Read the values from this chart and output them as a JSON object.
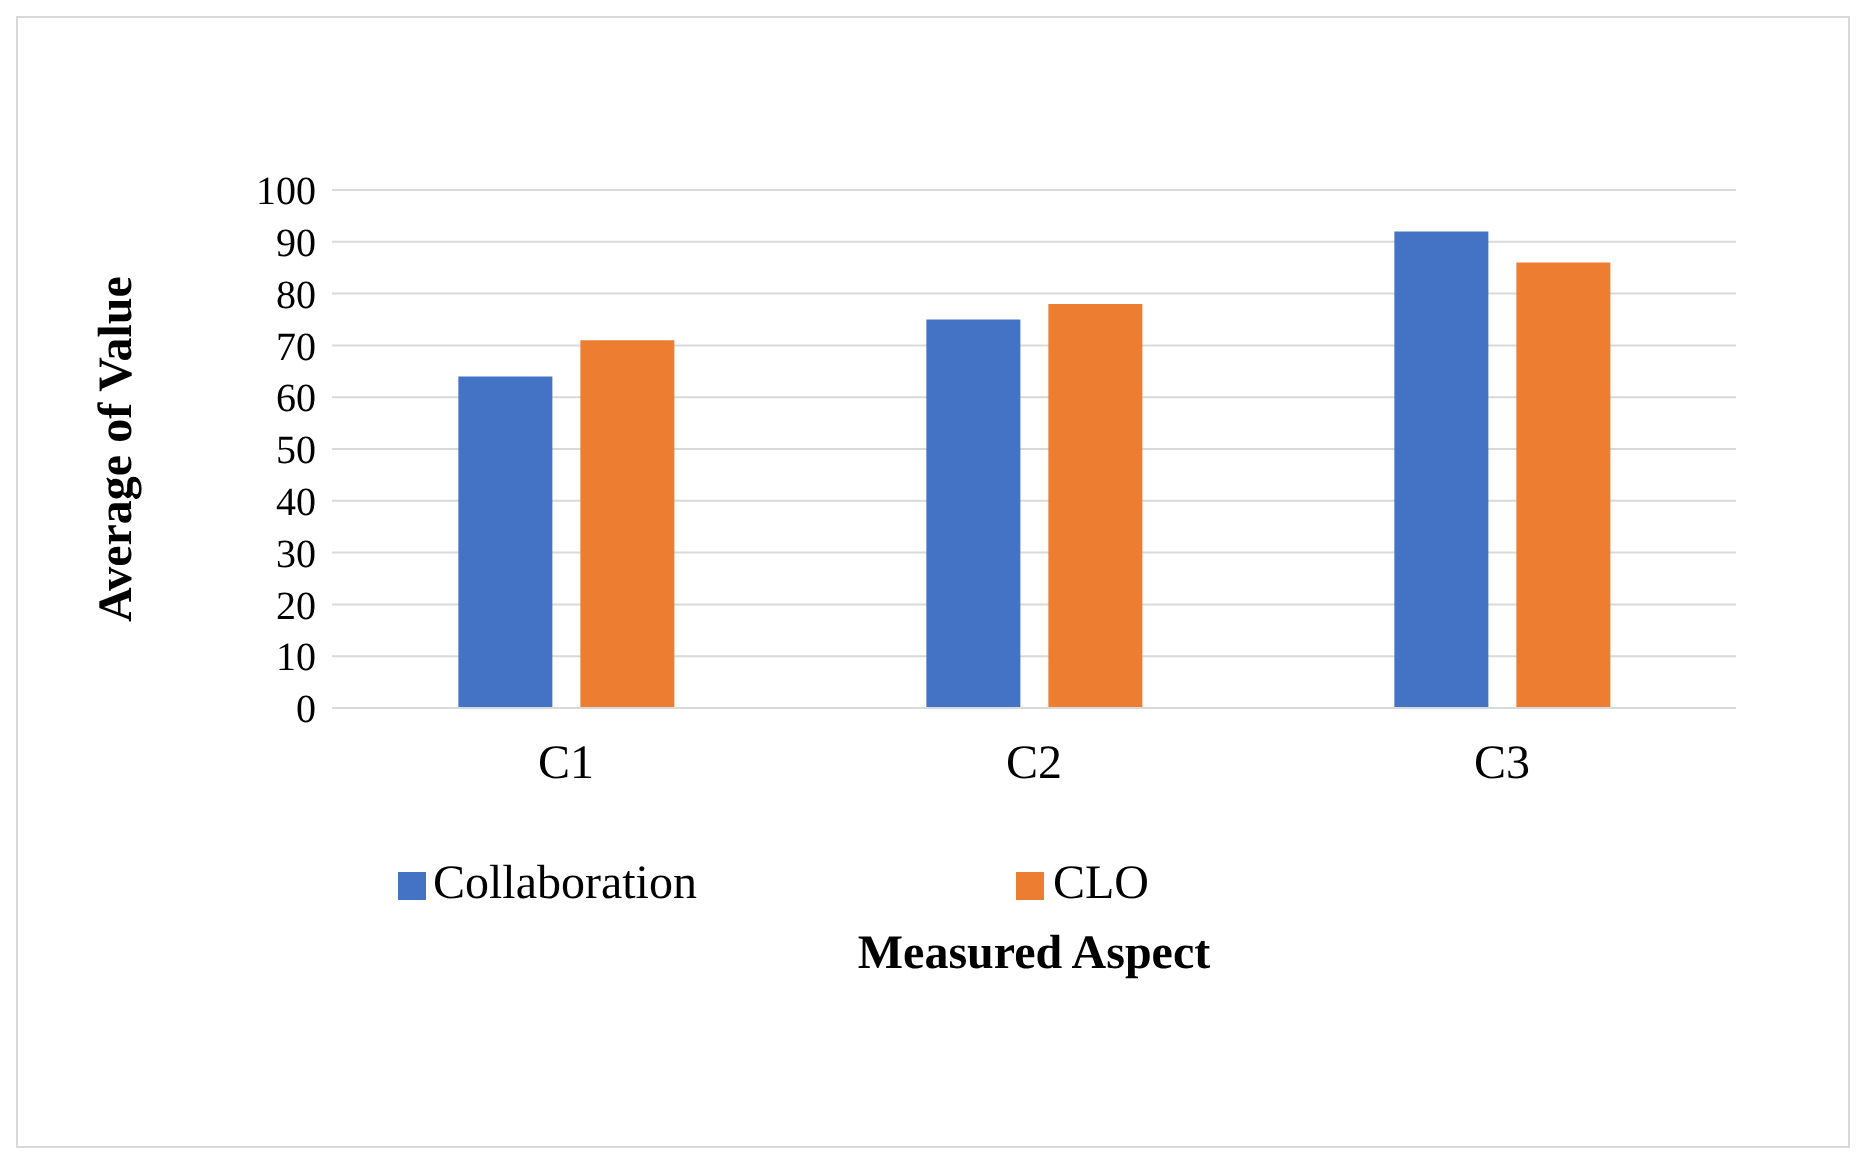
{
  "chart_data": {
    "type": "bar",
    "xlabel": "Measured Aspect",
    "ylabel": "Average of Value",
    "categories": [
      "C1",
      "C2",
      "C3"
    ],
    "series": [
      {
        "name": "Collaboration",
        "color": "#4472c4",
        "values": [
          64,
          75,
          92
        ]
      },
      {
        "name": "CLO",
        "color": "#ed7d31",
        "values": [
          71,
          78,
          86
        ]
      }
    ],
    "ylim": [
      0,
      100
    ],
    "yticks": [
      0,
      10,
      20,
      30,
      40,
      50,
      60,
      70,
      80,
      90,
      100
    ],
    "grid": "y",
    "legend": "bottom"
  }
}
